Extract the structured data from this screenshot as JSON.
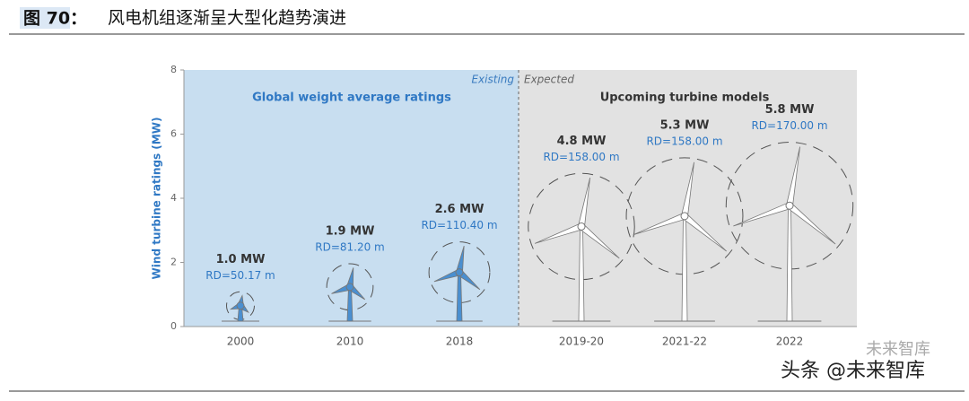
{
  "header": {
    "figure_label": "图 70：",
    "title": "风电机组逐渐呈大型化趋势演进"
  },
  "chart_data": {
    "type": "turbine",
    "y_label": "Wind turbine ratings (MW)",
    "regions": [
      {
        "label": "Existing",
        "heading": "Global weight average ratings",
        "color": "#c8def0"
      },
      {
        "label": "Expected",
        "heading": "Upcoming turbine models",
        "color": "#e2e2e2"
      }
    ],
    "categories": [
      "2000",
      "2010",
      "2018",
      "2019-20",
      "2021-22",
      "2022"
    ],
    "region_of": [
      0,
      0,
      0,
      1,
      1,
      1
    ],
    "values": [
      1.0,
      1.9,
      2.6,
      4.8,
      5.3,
      5.8
    ],
    "value_labels": [
      "1.0 MW",
      "1.9 MW",
      "2.6 MW",
      "4.8 MW",
      "5.3 MW",
      "5.8 MW"
    ],
    "rd_labels": [
      "RD=50.17 m",
      "RD=81.20 m",
      "RD=110.40 m",
      "RD=158.00 m",
      "RD=158.00 m",
      "RD=170.00 m"
    ],
    "ylim": [
      0,
      8
    ],
    "yticks": [
      0,
      2,
      4,
      6,
      8
    ]
  },
  "watermarks": [
    "未来智库",
    "头条 @未来智库"
  ]
}
